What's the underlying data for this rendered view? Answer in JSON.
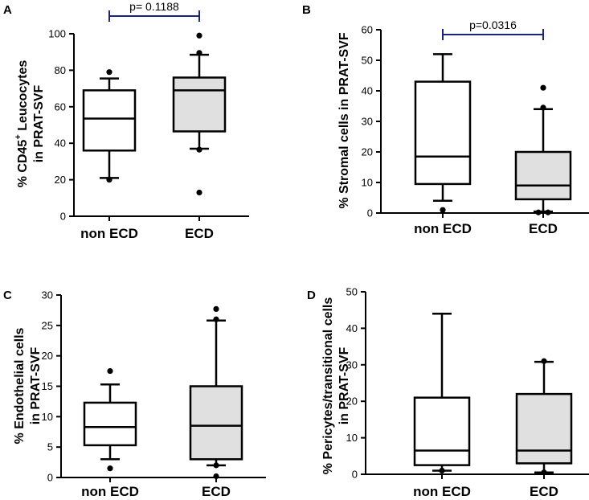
{
  "chart_data": [
    {
      "type": "boxplot",
      "panel_label": "A",
      "ylabel_lines": [
        "% CD45",
        "+",
        " Leucocytes",
        "in PRAT-SVF"
      ],
      "ylim": [
        0,
        100
      ],
      "yticks": [
        0,
        20,
        40,
        60,
        80,
        100
      ],
      "categories": [
        "non ECD",
        "ECD"
      ],
      "boxes": [
        {
          "name": "non ECD",
          "fill": "#ffffff",
          "whisker_low": 21,
          "q1": 36,
          "median": 53.5,
          "q3": 69,
          "whisker_high": 75.5,
          "outliers": [
            20,
            79
          ]
        },
        {
          "name": "ECD",
          "fill": "#e0e0e0",
          "whisker_low": 37,
          "q1": 46.5,
          "median": 69,
          "q3": 76,
          "whisker_high": 88.5,
          "outliers": [
            13,
            36.5,
            89.5,
            99
          ]
        }
      ],
      "comparison": {
        "label": "p= 0.1188",
        "y": 108,
        "color": "#1a237e"
      }
    },
    {
      "type": "boxplot",
      "panel_label": "B",
      "ylabel_lines": [
        "% Stromal cells in PRAT-SVF"
      ],
      "ylim": [
        0,
        60
      ],
      "yticks": [
        0,
        10,
        20,
        30,
        40,
        50,
        60
      ],
      "categories": [
        "non ECD",
        "ECD"
      ],
      "boxes": [
        {
          "name": "non ECD",
          "fill": "#ffffff",
          "whisker_low": 4,
          "q1": 9.5,
          "median": 18.5,
          "q3": 43,
          "whisker_high": 52,
          "outliers": [
            1
          ]
        },
        {
          "name": "ECD",
          "fill": "#e0e0e0",
          "whisker_low": 0.5,
          "q1": 4.5,
          "median": 9,
          "q3": 20,
          "whisker_high": 34,
          "outliers": [
            0.2,
            0.2,
            34.5,
            41
          ]
        }
      ],
      "comparison": {
        "label": "p=0.0316",
        "y": 58,
        "color": "#1a237e"
      }
    },
    {
      "type": "boxplot",
      "panel_label": "C",
      "ylabel_lines": [
        "% Endothelial cells",
        "in PRAT-SVF"
      ],
      "ylim": [
        0,
        30
      ],
      "yticks": [
        0,
        5,
        10,
        15,
        20,
        25,
        30
      ],
      "categories": [
        "non ECD",
        "ECD"
      ],
      "boxes": [
        {
          "name": "non ECD",
          "fill": "#ffffff",
          "whisker_low": 3,
          "q1": 5.3,
          "median": 8.3,
          "q3": 12.3,
          "whisker_high": 15.3,
          "outliers": [
            1.5,
            17.5
          ]
        },
        {
          "name": "ECD",
          "fill": "#e0e0e0",
          "whisker_low": 2,
          "q1": 3,
          "median": 8.5,
          "q3": 15,
          "whisker_high": 25.8,
          "outliers": [
            0.2,
            2,
            26,
            27.7
          ]
        }
      ]
    },
    {
      "type": "boxplot",
      "panel_label": "D",
      "ylabel_lines": [
        "% Pericytes/transitional cells",
        "in PRAT-SVF"
      ],
      "ylim": [
        0,
        50
      ],
      "yticks": [
        0,
        10,
        20,
        30,
        40,
        50
      ],
      "categories": [
        "non ECD",
        "ECD"
      ],
      "boxes": [
        {
          "name": "non ECD",
          "fill": "#ffffff",
          "whisker_low": 1,
          "q1": 2.5,
          "median": 6.5,
          "q3": 21,
          "whisker_high": 44,
          "outliers": [
            1
          ]
        },
        {
          "name": "ECD",
          "fill": "#e0e0e0",
          "whisker_low": 0.5,
          "q1": 3,
          "median": 6.5,
          "q3": 22,
          "whisker_high": 30.8,
          "outliers": [
            0.5,
            31
          ]
        }
      ]
    }
  ]
}
